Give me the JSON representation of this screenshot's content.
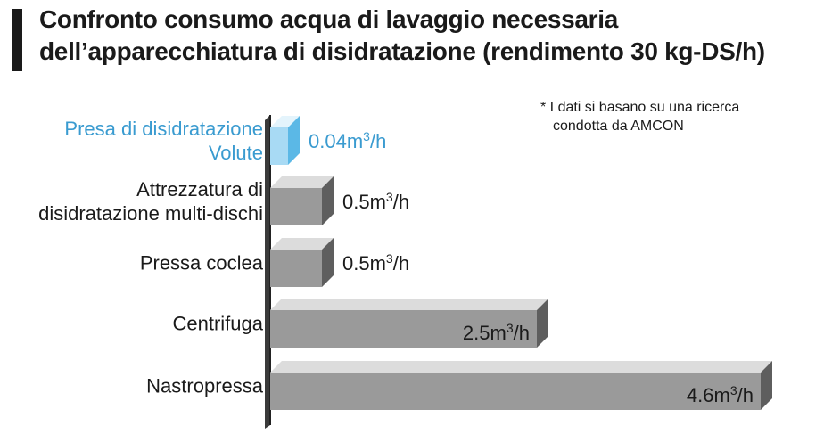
{
  "title": "Confronto consumo acqua di lavaggio necessaria dell’apparecchiatura di disidratazione (rendimento 30 kg-DS/h)",
  "note": {
    "line1": "* I dati si basano su una ricerca",
    "line2": "condotta da AMCON"
  },
  "colors": {
    "highlight": "#3a9bd0",
    "bar_front": "#9a9a9a",
    "bar_top": "#dcdcdc",
    "bar_side": "#5e5e5e",
    "hl_front": "#a8daf4",
    "hl_top": "#e4f4fc",
    "hl_side": "#5bb8e6"
  },
  "chart_data": {
    "type": "bar",
    "orientation": "horizontal",
    "title": "Confronto consumo acqua di lavaggio necessaria dell’apparecchiatura di disidratazione (rendimento 30 kg-DS/h)",
    "categories": [
      [
        "Presa di disidratazione",
        "Volute"
      ],
      [
        "Attrezzatura di",
        "disidratazione multi-dischi"
      ],
      [
        "Pressa coclea"
      ],
      [
        "Centrifuga"
      ],
      [
        "Nastropressa"
      ]
    ],
    "values": [
      0.04,
      0.5,
      0.5,
      2.5,
      4.6
    ],
    "value_labels": [
      "0.04m",
      "0.5m",
      "0.5m",
      "2.5m",
      "4.6m"
    ],
    "unit_sup": "3",
    "unit_tail": "/h",
    "highlight_index": 0,
    "grid": false,
    "legend": "none"
  }
}
